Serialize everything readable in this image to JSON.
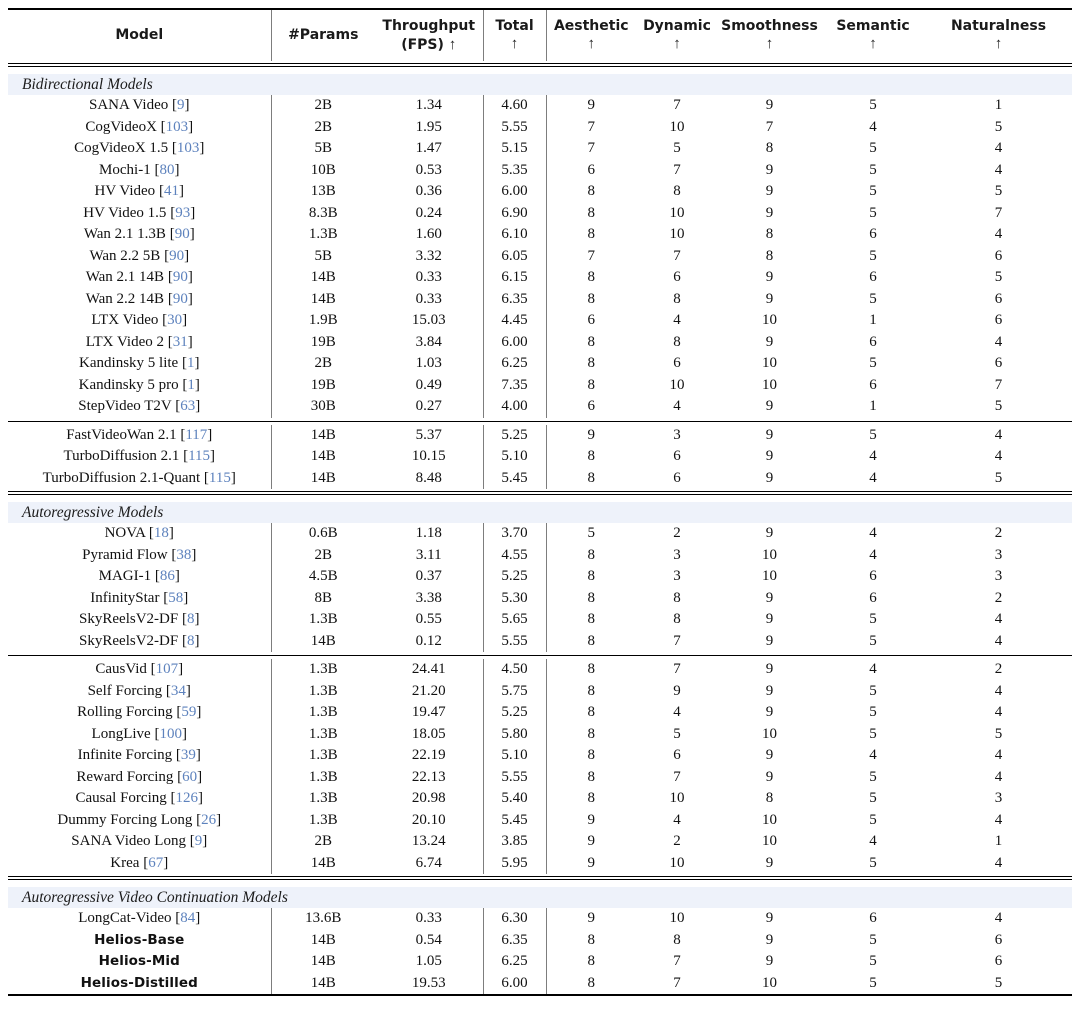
{
  "table": {
    "columns": [
      {
        "label": "Model"
      },
      {
        "label": "#Params"
      },
      {
        "label": "Throughput",
        "sub": "(FPS)",
        "arrow": "↑"
      },
      {
        "label": "Total",
        "arrow": "↑"
      },
      {
        "label": "Aesthetic",
        "arrow": "↑"
      },
      {
        "label": "Dynamic",
        "arrow": "↑"
      },
      {
        "label": "Smoothness",
        "arrow": "↑"
      },
      {
        "label": "Semantic",
        "arrow": "↑"
      },
      {
        "label": "Naturalness",
        "arrow": "↑"
      }
    ],
    "accent_citation_color": "#5d82bd",
    "section_band_color": "#eef2fa",
    "sections": [
      {
        "label": "Bidirectional Models",
        "groups": [
          [
            {
              "model": "SANA Video",
              "cite": "9",
              "params": "2B",
              "fps": "1.34",
              "total": "4.60",
              "scores": [
                "9",
                "7",
                "9",
                "5",
                "1"
              ]
            },
            {
              "model": "CogVideoX",
              "cite": "103",
              "params": "2B",
              "fps": "1.95",
              "total": "5.55",
              "scores": [
                "7",
                "10",
                "7",
                "4",
                "5"
              ]
            },
            {
              "model": "CogVideoX 1.5",
              "cite": "103",
              "params": "5B",
              "fps": "1.47",
              "total": "5.15",
              "scores": [
                "7",
                "5",
                "8",
                "5",
                "4"
              ]
            },
            {
              "model": "Mochi-1",
              "cite": "80",
              "params": "10B",
              "fps": "0.53",
              "total": "5.35",
              "scores": [
                "6",
                "7",
                "9",
                "5",
                "4"
              ]
            },
            {
              "model": "HV Video",
              "cite": "41",
              "params": "13B",
              "fps": "0.36",
              "total": "6.00",
              "scores": [
                "8",
                "8",
                "9",
                "5",
                "5"
              ]
            },
            {
              "model": "HV Video 1.5",
              "cite": "93",
              "params": "8.3B",
              "fps": "0.24",
              "total": "6.90",
              "scores": [
                "8",
                "10",
                "9",
                "5",
                "7"
              ]
            },
            {
              "model": "Wan 2.1 1.3B",
              "cite": "90",
              "params": "1.3B",
              "fps": "1.60",
              "total": "6.10",
              "scores": [
                "8",
                "10",
                "8",
                "6",
                "4"
              ]
            },
            {
              "model": "Wan 2.2 5B",
              "cite": "90",
              "params": "5B",
              "fps": "3.32",
              "total": "6.05",
              "scores": [
                "7",
                "7",
                "8",
                "5",
                "6"
              ]
            },
            {
              "model": "Wan 2.1 14B",
              "cite": "90",
              "params": "14B",
              "fps": "0.33",
              "total": "6.15",
              "scores": [
                "8",
                "6",
                "9",
                "6",
                "5"
              ]
            },
            {
              "model": "Wan 2.2 14B",
              "cite": "90",
              "params": "14B",
              "fps": "0.33",
              "total": "6.35",
              "scores": [
                "8",
                "8",
                "9",
                "5",
                "6"
              ]
            },
            {
              "model": "LTX Video",
              "cite": "30",
              "params": "1.9B",
              "fps": "15.03",
              "total": "4.45",
              "scores": [
                "6",
                "4",
                "10",
                "1",
                "6"
              ]
            },
            {
              "model": "LTX Video 2",
              "cite": "31",
              "params": "19B",
              "fps": "3.84",
              "total": "6.00",
              "scores": [
                "8",
                "8",
                "9",
                "6",
                "4"
              ]
            },
            {
              "model": "Kandinsky 5 lite",
              "cite": "1",
              "params": "2B",
              "fps": "1.03",
              "total": "6.25",
              "scores": [
                "8",
                "6",
                "10",
                "5",
                "6"
              ]
            },
            {
              "model": "Kandinsky 5 pro",
              "cite": "1",
              "params": "19B",
              "fps": "0.49",
              "total": "7.35",
              "scores": [
                "8",
                "10",
                "10",
                "6",
                "7"
              ]
            },
            {
              "model": "StepVideo T2V",
              "cite": "63",
              "params": "30B",
              "fps": "0.27",
              "total": "4.00",
              "scores": [
                "6",
                "4",
                "9",
                "1",
                "5"
              ]
            }
          ],
          [
            {
              "model": "FastVideoWan 2.1",
              "cite": "117",
              "params": "14B",
              "fps": "5.37",
              "total": "5.25",
              "scores": [
                "9",
                "3",
                "9",
                "5",
                "4"
              ]
            },
            {
              "model": "TurboDiffusion 2.1",
              "cite": "115",
              "params": "14B",
              "fps": "10.15",
              "total": "5.10",
              "scores": [
                "8",
                "6",
                "9",
                "4",
                "4"
              ]
            },
            {
              "model": "TurboDiffusion 2.1-Quant",
              "cite": "115",
              "params": "14B",
              "fps": "8.48",
              "total": "5.45",
              "scores": [
                "8",
                "6",
                "9",
                "4",
                "5"
              ]
            }
          ]
        ]
      },
      {
        "label": "Autoregressive Models",
        "groups": [
          [
            {
              "model": "NOVA",
              "cite": "18",
              "params": "0.6B",
              "fps": "1.18",
              "total": "3.70",
              "scores": [
                "5",
                "2",
                "9",
                "4",
                "2"
              ]
            },
            {
              "model": "Pyramid Flow",
              "cite": "38",
              "params": "2B",
              "fps": "3.11",
              "total": "4.55",
              "scores": [
                "8",
                "3",
                "10",
                "4",
                "3"
              ]
            },
            {
              "model": "MAGI-1",
              "cite": "86",
              "params": "4.5B",
              "fps": "0.37",
              "total": "5.25",
              "scores": [
                "8",
                "3",
                "10",
                "6",
                "3"
              ]
            },
            {
              "model": "InfinityStar",
              "cite": "58",
              "params": "8B",
              "fps": "3.38",
              "total": "5.30",
              "scores": [
                "8",
                "8",
                "9",
                "6",
                "2"
              ]
            },
            {
              "model": "SkyReelsV2-DF",
              "cite": "8",
              "params": "1.3B",
              "fps": "0.55",
              "total": "5.65",
              "scores": [
                "8",
                "8",
                "9",
                "5",
                "4"
              ]
            },
            {
              "model": "SkyReelsV2-DF",
              "cite": "8",
              "params": "14B",
              "fps": "0.12",
              "total": "5.55",
              "scores": [
                "8",
                "7",
                "9",
                "5",
                "4"
              ]
            }
          ],
          [
            {
              "model": "CausVid",
              "cite": "107",
              "params": "1.3B",
              "fps": "24.41",
              "total": "4.50",
              "scores": [
                "8",
                "7",
                "9",
                "4",
                "2"
              ]
            },
            {
              "model": "Self Forcing",
              "cite": "34",
              "params": "1.3B",
              "fps": "21.20",
              "total": "5.75",
              "scores": [
                "8",
                "9",
                "9",
                "5",
                "4"
              ]
            },
            {
              "model": "Rolling Forcing",
              "cite": "59",
              "params": "1.3B",
              "fps": "19.47",
              "total": "5.25",
              "scores": [
                "8",
                "4",
                "9",
                "5",
                "4"
              ]
            },
            {
              "model": "LongLive",
              "cite": "100",
              "params": "1.3B",
              "fps": "18.05",
              "total": "5.80",
              "scores": [
                "8",
                "5",
                "10",
                "5",
                "5"
              ]
            },
            {
              "model": "Infinite Forcing",
              "cite": "39",
              "params": "1.3B",
              "fps": "22.19",
              "total": "5.10",
              "scores": [
                "8",
                "6",
                "9",
                "4",
                "4"
              ]
            },
            {
              "model": "Reward Forcing",
              "cite": "60",
              "params": "1.3B",
              "fps": "22.13",
              "total": "5.55",
              "scores": [
                "8",
                "7",
                "9",
                "5",
                "4"
              ]
            },
            {
              "model": "Causal Forcing",
              "cite": "126",
              "params": "1.3B",
              "fps": "20.98",
              "total": "5.40",
              "scores": [
                "8",
                "10",
                "8",
                "5",
                "3"
              ]
            },
            {
              "model": "Dummy Forcing Long",
              "cite": "26",
              "params": "1.3B",
              "fps": "20.10",
              "total": "5.45",
              "scores": [
                "9",
                "4",
                "10",
                "5",
                "4"
              ]
            },
            {
              "model": "SANA Video Long",
              "cite": "9",
              "params": "2B",
              "fps": "13.24",
              "total": "3.85",
              "scores": [
                "9",
                "2",
                "10",
                "4",
                "1"
              ]
            },
            {
              "model": "Krea",
              "cite": "67",
              "params": "14B",
              "fps": "6.74",
              "total": "5.95",
              "scores": [
                "9",
                "10",
                "9",
                "5",
                "4"
              ]
            }
          ]
        ]
      },
      {
        "label": "Autoregressive Video Continuation Models",
        "groups": [
          [
            {
              "model": "LongCat-Video",
              "cite": "84",
              "params": "13.6B",
              "fps": "0.33",
              "total": "6.30",
              "scores": [
                "9",
                "10",
                "9",
                "6",
                "4"
              ]
            },
            {
              "model": "Helios-Base",
              "bold": true,
              "params": "14B",
              "fps": "0.54",
              "total": "6.35",
              "scores": [
                "8",
                "8",
                "9",
                "5",
                "6"
              ]
            },
            {
              "model": "Helios-Mid",
              "bold": true,
              "params": "14B",
              "fps": "1.05",
              "total": "6.25",
              "scores": [
                "8",
                "7",
                "9",
                "5",
                "6"
              ]
            },
            {
              "model": "Helios-Distilled",
              "bold": true,
              "params": "14B",
              "fps": "19.53",
              "total": "6.00",
              "scores": [
                "8",
                "7",
                "10",
                "5",
                "5"
              ]
            }
          ]
        ]
      }
    ]
  }
}
